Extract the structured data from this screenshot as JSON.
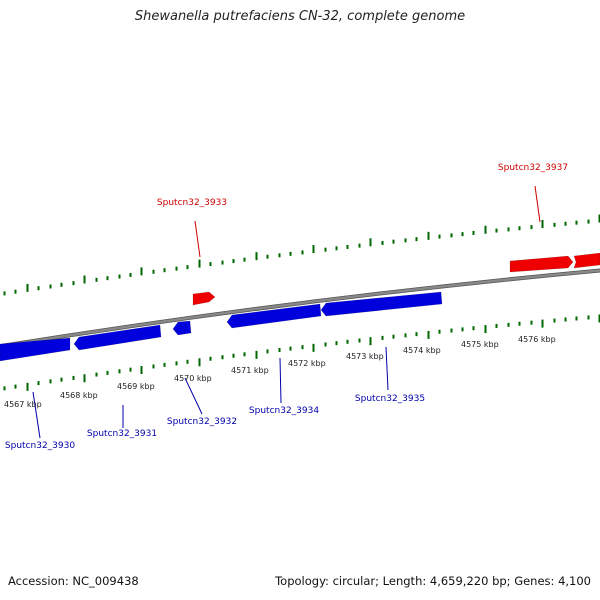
{
  "title": "Shewanella putrefaciens CN-32, complete genome",
  "colors": {
    "forward_gene": "#ee0000",
    "reverse_gene": "#0000dd",
    "forward_label": "#cc0000",
    "reverse_label": "#0000aa",
    "tick": "#006600",
    "backbone": "#888888"
  },
  "ruler": {
    "unit": "kbp",
    "labels": [
      "4567 kbp",
      "4568 kbp",
      "4569 kbp",
      "4570 kbp",
      "4571 kbp",
      "4572 kbp",
      "4573 kbp",
      "4574 kbp",
      "4575 kbp",
      "4576 kbp"
    ]
  },
  "genes": {
    "forward": [
      {
        "name": "Sputcn32_3933"
      },
      {
        "name": "Sputcn32_3937"
      }
    ],
    "reverse": [
      {
        "name": "Sputcn32_3930"
      },
      {
        "name": "Sputcn32_3931"
      },
      {
        "name": "Sputcn32_3932"
      },
      {
        "name": "Sputcn32_3934"
      },
      {
        "name": "Sputcn32_3935"
      }
    ]
  },
  "footer": {
    "accession": "Accession: NC_009438",
    "summary": "Topology: circular; Length: 4,659,220 bp; Genes: 4,100"
  }
}
